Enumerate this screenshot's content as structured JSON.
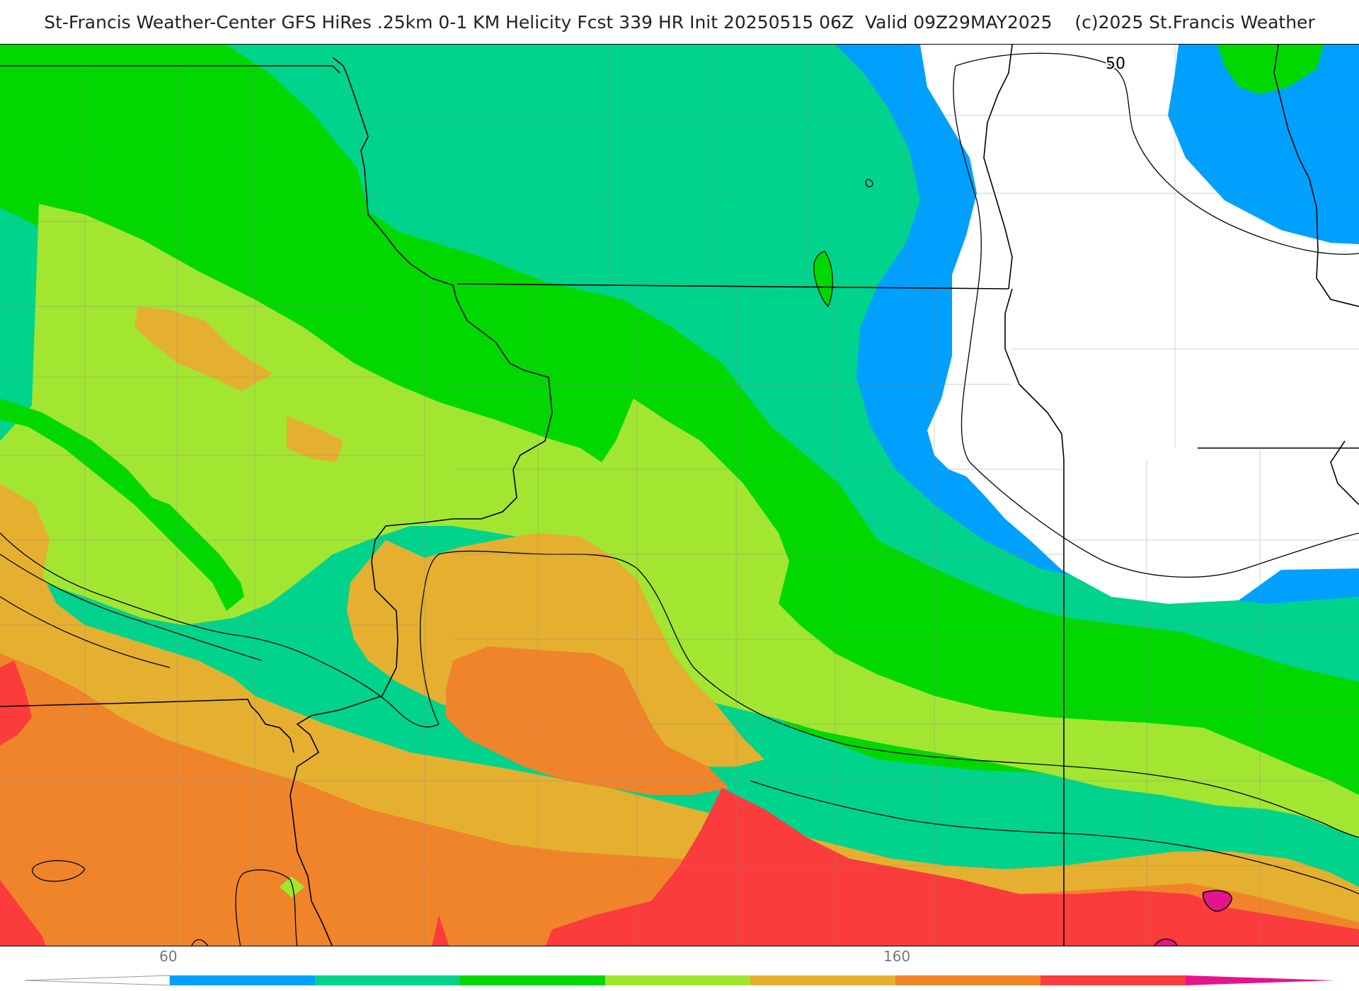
{
  "title": "St-Francis Weather-Center GFS HiRes .25km 0-1 KM Helicity Fcst 339 HR Init 20250515 06Z  Valid 09Z29MAY2025    (c)2025 St.Francis Weather",
  "map": {
    "product": "0-1 KM Helicity",
    "contour_labels": [
      "50"
    ],
    "fill_colors": {
      "below_60": "#ffffff",
      "60_80": "#00a0ff",
      "80_100": "#00d38c",
      "100_120": "#00d800",
      "120_140": "#a2e632",
      "140_160": "#e5b030",
      "160_180": "#f0842a",
      "180_200": "#fa3c3c",
      "above_200": "#e6148c"
    }
  },
  "legend": {
    "tick_labels": [
      "60",
      "160"
    ],
    "colors": [
      "#ffffff",
      "#00a0ff",
      "#00d38c",
      "#00d800",
      "#a2e632",
      "#e5b030",
      "#f0842a",
      "#fa3c3c",
      "#e6148c"
    ]
  }
}
